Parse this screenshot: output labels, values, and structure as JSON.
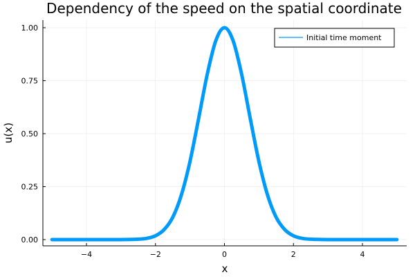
{
  "chart_data": {
    "type": "line",
    "title": "Dependency of the speed on the spatial coordinate",
    "xlabel": "x",
    "ylabel": "u(x)",
    "xlim": [
      -5,
      5
    ],
    "ylim": [
      0,
      1
    ],
    "xticks": [
      -4,
      -2,
      0,
      2,
      4
    ],
    "xtick_labels": [
      "−4",
      "−2",
      "0",
      "2",
      "4"
    ],
    "yticks": [
      0,
      0.25,
      0.5,
      0.75,
      1
    ],
    "ytick_labels": [
      "0.00",
      "0.25",
      "0.50",
      "0.75",
      "1.00"
    ],
    "grid": true,
    "legend_position": "top-right",
    "series": [
      {
        "name": "Initial time moment",
        "color": "#009af9",
        "x": [
          -5,
          -4.5,
          -4,
          -3.5,
          -3,
          -2.5,
          -2.25,
          -2,
          -1.75,
          -1.5,
          -1.25,
          -1,
          -0.75,
          -0.5,
          -0.25,
          0,
          0.25,
          0.5,
          0.75,
          1,
          1.25,
          1.5,
          1.75,
          2,
          2.25,
          2.5,
          3,
          3.5,
          4,
          4.5,
          5
        ],
        "y": [
          0,
          0,
          0,
          0,
          0,
          0.002,
          0.006,
          0.018,
          0.047,
          0.105,
          0.21,
          0.368,
          0.57,
          0.779,
          0.939,
          1,
          0.939,
          0.779,
          0.57,
          0.368,
          0.21,
          0.105,
          0.047,
          0.018,
          0.006,
          0.002,
          0,
          0,
          0,
          0,
          0
        ]
      }
    ]
  }
}
